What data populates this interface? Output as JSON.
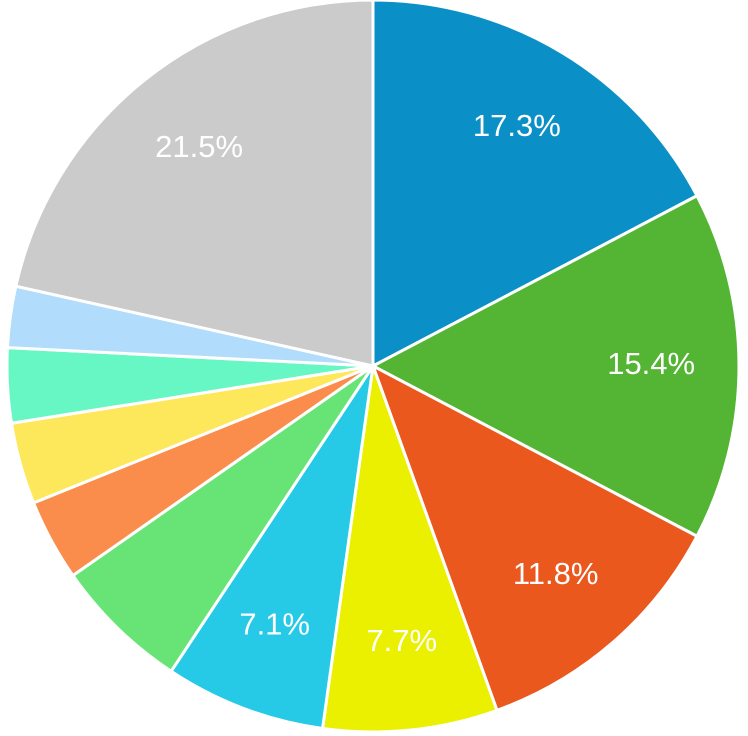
{
  "chart_data": {
    "type": "pie",
    "values": [
      17.3,
      15.4,
      11.8,
      7.7,
      7.1,
      6.0,
      3.6,
      3.6,
      3.3,
      2.7,
      21.5
    ],
    "value_labels": [
      "17.3%",
      "15.4%",
      "11.8%",
      "7.7%",
      "7.1%",
      null,
      null,
      null,
      null,
      null,
      "21.5%"
    ],
    "colors": [
      "#0a8fc6",
      "#54b433",
      "#ea581e",
      "#ebef00",
      "#26c9e6",
      "#68e477",
      "#fb8d4c",
      "#fde85c",
      "#67f7c4",
      "#b1dcfc",
      "#cbcbcb"
    ]
  }
}
